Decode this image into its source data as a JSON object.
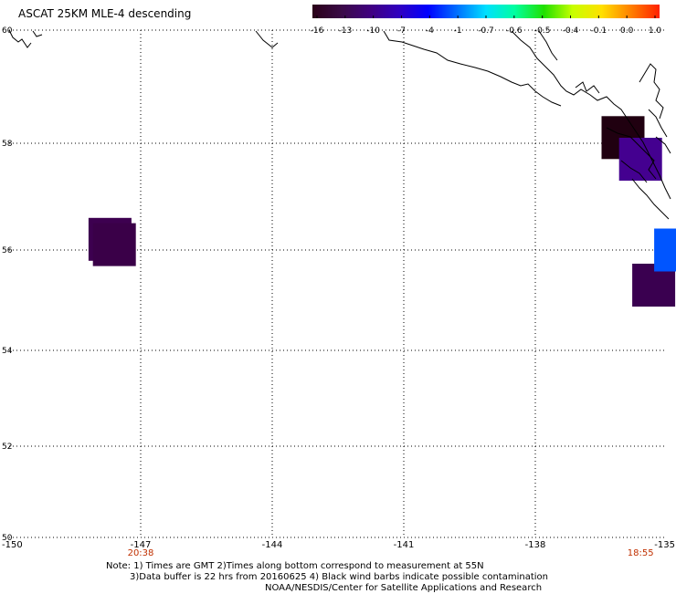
{
  "title": "ASCAT 25KM MLE-4 descending",
  "colorbar": {
    "labels": [
      "-16",
      "-13",
      "-10",
      "-7",
      "-4",
      "-1",
      "-0.7",
      "-0.6",
      "-0.5",
      "-0.4",
      "-0.1",
      "0.0",
      "1.0"
    ],
    "colors": [
      "#2a0018",
      "#3a0a46",
      "#400080",
      "#3000c0",
      "#0000ff",
      "#0070ff",
      "#00e0ff",
      "#00ffa0",
      "#20e000",
      "#c8ff00",
      "#ffe000",
      "#ff8000",
      "#ff2000"
    ]
  },
  "lat_labels": [
    "60",
    "58",
    "56",
    "54",
    "52",
    "50"
  ],
  "lon_labels": [
    "-150",
    "-147",
    "-144",
    "-141",
    "-138",
    "-135"
  ],
  "times": {
    "left": "20:38",
    "right": "18:55",
    "color": "#c03000"
  },
  "notes": {
    "line1": "Note: 1) Times are GMT 2)Times along bottom correspond to measurement at 55N",
    "line2": "3)Data buffer is 22 hrs from 20160625 4) Black wind barbs indicate possible contamination",
    "line3": "NOAA/NESDIS/Center for Satellite Applications and Research"
  },
  "data_cells": [
    {
      "lon": -147.7,
      "lat": 56.2,
      "color": "#3d0050"
    },
    {
      "lon": -147.6,
      "lat": 56.1,
      "color": "#3a0048"
    },
    {
      "lon": -136.0,
      "lat": 58.1,
      "color": "#200010"
    },
    {
      "lon": -135.6,
      "lat": 57.7,
      "color": "#440090"
    },
    {
      "lon": -135.3,
      "lat": 55.3,
      "color": "#3a0050"
    },
    {
      "lon": -134.8,
      "lat": 56.0,
      "color": "#0055ff"
    }
  ]
}
